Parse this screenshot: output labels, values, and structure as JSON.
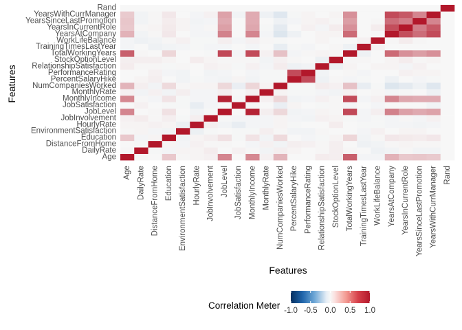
{
  "chart_data": {
    "type": "heatmap",
    "title": "",
    "xlabel": "Features",
    "ylabel": "Features",
    "features": [
      "Age",
      "DailyRate",
      "DistanceFromHome",
      "Education",
      "EnvironmentSatisfaction",
      "HourlyRate",
      "JobInvolvement",
      "JobLevel",
      "JobSatisfaction",
      "MonthlyIncome",
      "MonthlyRate",
      "NumCompaniesWorked",
      "PercentSalaryHike",
      "PerformanceRating",
      "RelationshipSatisfaction",
      "StockOptionLevel",
      "TotalWorkingYears",
      "TrainingTimesLastYear",
      "WorkLifeBalance",
      "YearsAtCompany",
      "YearsInCurrentRole",
      "YearsSinceLastPromotion",
      "YearsWithCurrManager",
      "Rand"
    ],
    "matrix": [
      [
        1.0,
        0.01,
        0.0,
        0.21,
        0.01,
        0.02,
        0.03,
        0.51,
        0.0,
        0.5,
        0.03,
        0.3,
        0.0,
        0.0,
        0.05,
        0.04,
        0.68,
        -0.02,
        -0.02,
        0.31,
        0.21,
        0.22,
        0.2,
        0.0
      ],
      [
        0.01,
        1.0,
        -0.01,
        -0.02,
        0.02,
        0.02,
        0.05,
        0.0,
        0.03,
        0.01,
        -0.03,
        0.04,
        0.02,
        0.0,
        0.01,
        0.04,
        0.01,
        0.0,
        -0.04,
        -0.03,
        0.01,
        -0.03,
        -0.03,
        0.0
      ],
      [
        0.0,
        -0.01,
        1.0,
        0.02,
        -0.02,
        0.03,
        0.01,
        0.01,
        0.0,
        -0.02,
        0.03,
        -0.03,
        0.04,
        0.03,
        0.01,
        0.04,
        0.0,
        -0.04,
        -0.03,
        0.01,
        0.02,
        0.01,
        0.01,
        0.0
      ],
      [
        0.21,
        -0.02,
        0.02,
        1.0,
        -0.03,
        0.02,
        0.04,
        0.1,
        -0.01,
        0.09,
        -0.03,
        0.13,
        0.0,
        -0.02,
        -0.01,
        0.02,
        0.15,
        -0.03,
        0.01,
        0.07,
        0.06,
        0.05,
        0.07,
        0.0
      ],
      [
        0.01,
        0.02,
        -0.02,
        -0.03,
        1.0,
        -0.05,
        -0.01,
        0.0,
        -0.01,
        -0.01,
        0.04,
        0.01,
        -0.03,
        -0.03,
        0.01,
        0.0,
        0.0,
        -0.02,
        0.03,
        0.0,
        0.02,
        0.02,
        0.0,
        0.0
      ],
      [
        0.02,
        0.02,
        0.03,
        0.02,
        -0.05,
        1.0,
        0.04,
        -0.03,
        -0.07,
        -0.02,
        -0.02,
        0.02,
        -0.01,
        0.0,
        0.0,
        0.05,
        0.0,
        -0.01,
        -0.01,
        -0.02,
        -0.02,
        -0.03,
        -0.02,
        0.0
      ],
      [
        0.03,
        0.05,
        0.01,
        0.04,
        -0.01,
        0.04,
        1.0,
        -0.01,
        -0.02,
        -0.02,
        -0.02,
        0.02,
        -0.02,
        -0.03,
        0.03,
        0.02,
        -0.01,
        -0.02,
        -0.01,
        -0.02,
        0.01,
        -0.02,
        0.03,
        0.0
      ],
      [
        0.51,
        0.0,
        0.01,
        0.1,
        0.0,
        -0.03,
        -0.01,
        1.0,
        0.0,
        0.95,
        0.04,
        0.14,
        -0.03,
        -0.02,
        0.02,
        0.01,
        0.78,
        -0.02,
        0.04,
        0.53,
        0.39,
        0.35,
        0.38,
        0.0
      ],
      [
        0.0,
        0.03,
        0.0,
        -0.01,
        -0.01,
        -0.07,
        -0.02,
        0.0,
        1.0,
        -0.01,
        0.0,
        -0.06,
        0.02,
        0.0,
        -0.01,
        0.01,
        -0.02,
        0.0,
        -0.02,
        0.0,
        0.0,
        0.0,
        -0.03,
        0.0
      ],
      [
        0.5,
        0.01,
        -0.02,
        0.09,
        -0.01,
        -0.02,
        -0.02,
        0.95,
        -0.01,
        1.0,
        0.03,
        0.15,
        -0.03,
        -0.02,
        0.03,
        0.01,
        0.77,
        -0.02,
        0.03,
        0.51,
        0.36,
        0.34,
        0.34,
        0.0
      ],
      [
        0.03,
        -0.03,
        0.03,
        -0.03,
        0.04,
        -0.02,
        -0.02,
        0.04,
        0.0,
        0.03,
        1.0,
        0.02,
        -0.01,
        -0.01,
        -0.02,
        -0.03,
        0.03,
        0.0,
        0.01,
        -0.02,
        -0.01,
        0.0,
        -0.04,
        0.0
      ],
      [
        0.3,
        0.04,
        -0.03,
        0.13,
        0.01,
        0.02,
        0.02,
        0.14,
        -0.06,
        0.15,
        0.02,
        1.0,
        -0.01,
        -0.01,
        0.05,
        0.03,
        0.24,
        -0.07,
        -0.01,
        -0.12,
        -0.09,
        -0.04,
        -0.11,
        0.0
      ],
      [
        0.0,
        0.02,
        0.04,
        0.0,
        -0.03,
        -0.01,
        -0.02,
        -0.03,
        0.02,
        -0.03,
        -0.01,
        -0.01,
        1.0,
        0.77,
        -0.04,
        0.01,
        -0.02,
        -0.01,
        0.0,
        -0.04,
        0.0,
        -0.02,
        -0.01,
        0.0
      ],
      [
        0.0,
        0.0,
        0.03,
        -0.02,
        -0.03,
        0.0,
        -0.03,
        -0.02,
        0.0,
        -0.02,
        -0.01,
        -0.01,
        0.77,
        1.0,
        -0.03,
        0.0,
        0.01,
        -0.02,
        0.0,
        0.0,
        0.03,
        0.02,
        0.02,
        0.0
      ],
      [
        0.05,
        0.01,
        0.01,
        -0.01,
        0.01,
        0.0,
        0.03,
        0.02,
        -0.01,
        0.03,
        -0.02,
        0.05,
        -0.04,
        -0.03,
        1.0,
        -0.05,
        0.02,
        0.0,
        0.02,
        0.02,
        -0.02,
        0.03,
        0.0,
        0.0
      ],
      [
        0.04,
        0.04,
        0.04,
        0.02,
        0.0,
        0.05,
        0.02,
        0.01,
        0.01,
        0.01,
        -0.03,
        0.03,
        0.01,
        0.0,
        -0.05,
        1.0,
        0.01,
        0.01,
        0.0,
        0.02,
        0.05,
        0.01,
        0.02,
        0.0
      ],
      [
        0.68,
        0.01,
        0.0,
        0.15,
        0.0,
        0.0,
        -0.01,
        0.78,
        -0.02,
        0.77,
        0.03,
        0.24,
        -0.02,
        0.01,
        0.02,
        0.01,
        1.0,
        -0.04,
        0.0,
        0.63,
        0.46,
        0.4,
        0.46,
        0.0
      ],
      [
        -0.02,
        0.0,
        -0.04,
        -0.03,
        -0.02,
        -0.01,
        -0.02,
        -0.02,
        0.0,
        -0.02,
        0.0,
        -0.07,
        -0.01,
        -0.02,
        0.0,
        0.01,
        -0.04,
        1.0,
        0.03,
        0.0,
        0.0,
        0.0,
        0.0,
        0.0
      ],
      [
        -0.02,
        -0.04,
        -0.03,
        0.01,
        0.03,
        -0.01,
        -0.01,
        0.04,
        -0.02,
        0.03,
        0.01,
        -0.01,
        0.0,
        0.0,
        0.02,
        0.0,
        0.0,
        0.03,
        1.0,
        0.01,
        0.05,
        0.01,
        0.0,
        0.0
      ],
      [
        0.31,
        -0.03,
        0.01,
        0.07,
        0.0,
        -0.02,
        -0.02,
        0.53,
        0.0,
        0.51,
        -0.02,
        -0.12,
        -0.04,
        0.0,
        0.02,
        0.02,
        0.63,
        0.0,
        0.01,
        1.0,
        0.76,
        0.62,
        0.77,
        0.0
      ],
      [
        0.21,
        0.01,
        0.02,
        0.06,
        0.02,
        -0.02,
        0.01,
        0.39,
        0.0,
        0.36,
        -0.01,
        -0.09,
        0.0,
        0.03,
        -0.02,
        0.05,
        0.46,
        0.0,
        0.05,
        0.76,
        1.0,
        0.55,
        0.71,
        0.0
      ],
      [
        0.22,
        -0.03,
        0.01,
        0.05,
        0.02,
        -0.03,
        -0.02,
        0.35,
        0.0,
        0.34,
        0.0,
        -0.04,
        -0.02,
        0.02,
        0.03,
        0.01,
        0.4,
        0.0,
        0.01,
        0.62,
        0.55,
        1.0,
        0.51,
        0.0
      ],
      [
        0.2,
        -0.03,
        0.01,
        0.07,
        0.0,
        -0.02,
        0.03,
        0.38,
        -0.03,
        0.34,
        -0.04,
        -0.11,
        -0.01,
        0.02,
        0.0,
        0.02,
        0.46,
        0.0,
        0.0,
        0.77,
        0.71,
        0.51,
        1.0,
        0.0
      ],
      [
        0.0,
        0.0,
        0.0,
        0.0,
        0.0,
        0.0,
        0.0,
        0.0,
        0.0,
        0.0,
        0.0,
        0.0,
        0.0,
        0.0,
        0.0,
        0.0,
        0.0,
        0.0,
        0.0,
        0.0,
        0.0,
        0.0,
        0.0,
        1.0
      ]
    ],
    "value_range": [
      -1,
      1
    ],
    "colors": {
      "low": "#2166ac",
      "mid": "#f7f7f7",
      "high": "#b2182b"
    },
    "legend": {
      "title": "Correlation Meter",
      "ticks": [
        -1.0,
        -0.5,
        0.0,
        0.5,
        1.0
      ],
      "tick_labels": [
        "-1.0",
        "-0.5",
        "0.0",
        "0.5",
        "1.0"
      ],
      "placement": "bottom"
    },
    "grid": false
  }
}
